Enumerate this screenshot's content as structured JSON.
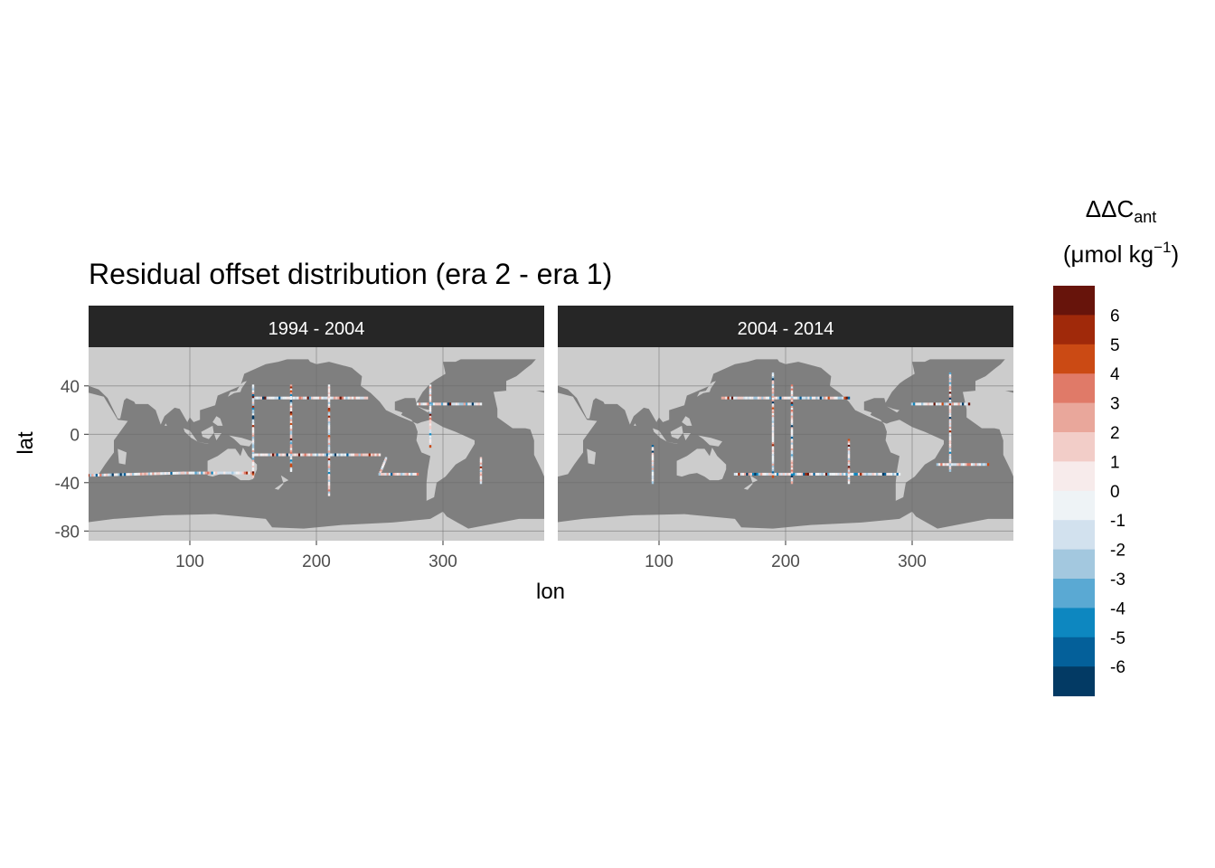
{
  "chart_data": {
    "type": "heatmap",
    "title": "Residual offset distribution (era 2 - era 1)",
    "xlabel": "lon",
    "ylabel": "lat",
    "xlim": [
      20,
      380
    ],
    "ylim": [
      -88,
      72
    ],
    "x_ticks": [
      100,
      200,
      300
    ],
    "y_ticks": [
      40,
      0,
      -40,
      -80
    ],
    "grid": true,
    "panels": [
      {
        "label": "1994 - 2004"
      },
      {
        "label": "2004 - 2014"
      }
    ],
    "legend": {
      "title_main": "ΔΔC",
      "title_sub": "ant",
      "units_pre": "(μmol kg",
      "units_sup": "−1",
      "units_post": ")",
      "placement": "right",
      "breaks": [
        {
          "label": "",
          "color": "#67140b"
        },
        {
          "label": "6",
          "color": "#a0290a"
        },
        {
          "label": "5",
          "color": "#cb4a14"
        },
        {
          "label": "4",
          "color": "#e07a68"
        },
        {
          "label": "3",
          "color": "#e9a79b"
        },
        {
          "label": "2",
          "color": "#f2cdc8"
        },
        {
          "label": "1",
          "color": "#f7ebeb"
        },
        {
          "label": "0",
          "color": "#eef3f6"
        },
        {
          "label": "-1",
          "color": "#d2e1ee"
        },
        {
          "label": "-2",
          "color": "#a3c8df"
        },
        {
          "label": "-3",
          "color": "#5aa9d3"
        },
        {
          "label": "-4",
          "color": "#0d87c0"
        },
        {
          "label": "-5",
          "color": "#04609a"
        },
        {
          "label": "-6",
          "color": "#033a64"
        }
      ]
    },
    "colors": {
      "ocean": "#7f7f7f",
      "land": "#cccccc",
      "strip": "#262626"
    }
  }
}
